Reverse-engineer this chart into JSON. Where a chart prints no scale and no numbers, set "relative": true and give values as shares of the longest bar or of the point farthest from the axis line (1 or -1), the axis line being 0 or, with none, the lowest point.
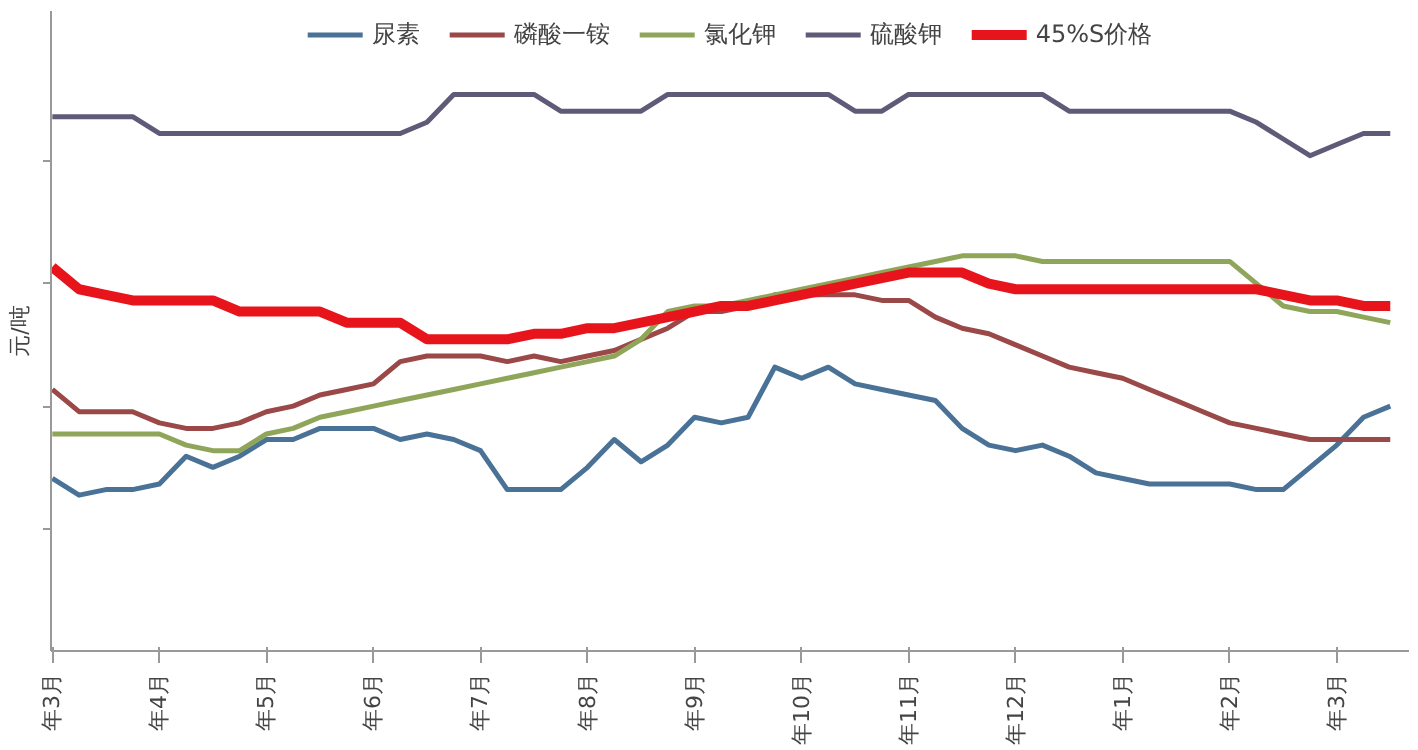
{
  "chart_data": {
    "type": "line",
    "relative": true,
    "ylabel": "元/吨",
    "categories": [
      "年3月",
      null,
      null,
      null,
      "年4月",
      null,
      null,
      null,
      "年5月",
      null,
      null,
      null,
      "年6月",
      null,
      null,
      null,
      "年7月",
      null,
      null,
      null,
      "年8月",
      null,
      null,
      null,
      "年9月",
      null,
      null,
      null,
      "年10月",
      null,
      null,
      null,
      "年11月",
      null,
      null,
      null,
      "年12月",
      null,
      null,
      null,
      "年1月",
      null,
      null,
      null,
      "年2月",
      null,
      null,
      null,
      "年3月",
      null,
      null
    ],
    "legend": "top",
    "marker": "none",
    "line_style": "solid",
    "series": [
      {
        "name": "尿素",
        "color": "#4a7196",
        "values": [
          0.31,
          0.28,
          0.29,
          0.29,
          0.3,
          0.35,
          0.33,
          0.35,
          0.38,
          0.38,
          0.4,
          0.4,
          0.4,
          0.38,
          0.39,
          0.38,
          0.36,
          0.29,
          0.29,
          0.29,
          0.33,
          0.38,
          0.34,
          0.37,
          0.42,
          0.41,
          0.42,
          0.51,
          0.49,
          0.51,
          0.48,
          0.47,
          0.46,
          0.45,
          0.4,
          0.37,
          0.36,
          0.37,
          0.35,
          0.32,
          0.31,
          0.3,
          0.3,
          0.3,
          0.3,
          0.29,
          0.29,
          0.33,
          0.37,
          0.42,
          0.44
        ]
      },
      {
        "name": "磷酸一铵",
        "color": "#9a4848",
        "values": [
          0.47,
          0.43,
          0.43,
          0.43,
          0.41,
          0.4,
          0.4,
          0.41,
          0.43,
          0.44,
          0.46,
          0.47,
          0.48,
          0.52,
          0.53,
          0.53,
          0.53,
          0.52,
          0.53,
          0.52,
          0.53,
          0.54,
          0.56,
          0.58,
          0.61,
          0.61,
          0.62,
          0.64,
          0.64,
          0.64,
          0.64,
          0.63,
          0.63,
          0.6,
          0.58,
          0.57,
          0.55,
          0.53,
          0.51,
          0.5,
          0.49,
          0.47,
          0.45,
          0.43,
          0.41,
          0.4,
          0.39,
          0.38,
          0.38,
          0.38,
          0.38
        ]
      },
      {
        "name": "氯化钾",
        "color": "#8fa65a",
        "values": [
          0.39,
          0.39,
          0.39,
          0.39,
          0.39,
          0.37,
          0.36,
          0.36,
          0.39,
          0.4,
          0.42,
          0.43,
          0.44,
          0.45,
          0.46,
          0.47,
          0.48,
          0.49,
          0.5,
          0.51,
          0.52,
          0.53,
          0.56,
          0.61,
          0.62,
          0.62,
          0.63,
          0.64,
          0.65,
          0.66,
          0.67,
          0.68,
          0.69,
          0.7,
          0.71,
          0.71,
          0.71,
          0.7,
          0.7,
          0.7,
          0.7,
          0.7,
          0.7,
          0.7,
          0.7,
          0.66,
          0.62,
          0.61,
          0.61,
          0.6,
          0.59
        ]
      },
      {
        "name": "硫酸钾",
        "color": "#5e5a78",
        "values": [
          0.96,
          0.96,
          0.96,
          0.96,
          0.93,
          0.93,
          0.93,
          0.93,
          0.93,
          0.93,
          0.93,
          0.93,
          0.93,
          0.93,
          0.95,
          1,
          1,
          1,
          1,
          0.97,
          0.97,
          0.97,
          0.97,
          1,
          1,
          1,
          1,
          1,
          1,
          1,
          0.97,
          0.97,
          1,
          1,
          1,
          1,
          1,
          1,
          0.97,
          0.97,
          0.97,
          0.97,
          0.97,
          0.97,
          0.97,
          0.95,
          0.92,
          0.89,
          0.91,
          0.93,
          0.93
        ]
      },
      {
        "name": "45%S价格",
        "color": "#e8141c",
        "values": [
          0.69,
          0.65,
          0.64,
          0.63,
          0.63,
          0.63,
          0.63,
          0.61,
          0.61,
          0.61,
          0.61,
          0.59,
          0.59,
          0.59,
          0.56,
          0.56,
          0.56,
          0.56,
          0.57,
          0.57,
          0.58,
          0.58,
          0.59,
          0.6,
          0.61,
          0.62,
          0.62,
          0.63,
          0.64,
          0.65,
          0.66,
          0.67,
          0.68,
          0.68,
          0.68,
          0.66,
          0.65,
          0.65,
          0.65,
          0.65,
          0.65,
          0.65,
          0.65,
          0.65,
          0.65,
          0.65,
          0.64,
          0.63,
          0.63,
          0.62,
          0.62
        ]
      }
    ]
  }
}
